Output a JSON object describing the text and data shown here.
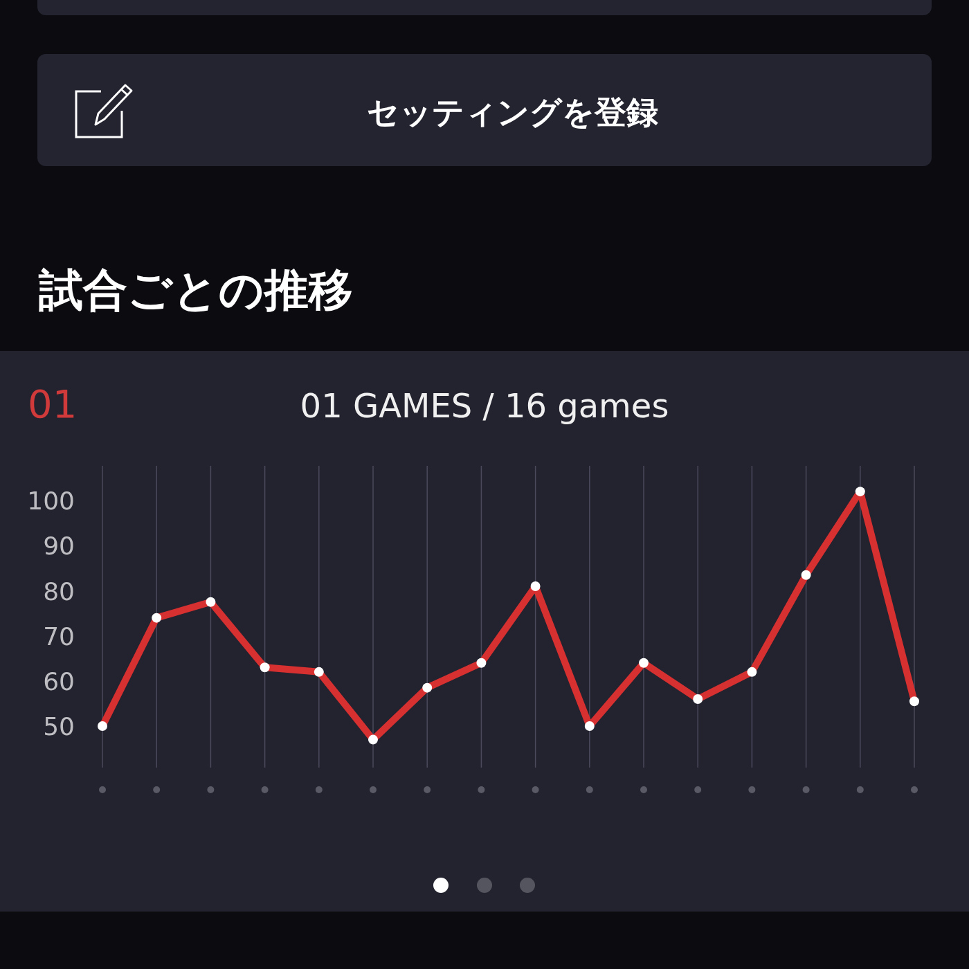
{
  "chart_data": {
    "type": "line",
    "title": "試合ごとの推移",
    "subtitle": "01 GAMES / 16 games",
    "annotations": [
      "セッティングを登録",
      "01"
    ],
    "categories": [
      null,
      null,
      null,
      null,
      null,
      null,
      null,
      null,
      null,
      null,
      null,
      null,
      null,
      null,
      null,
      null
    ],
    "series": [
      {
        "color": "#d63031",
        "values": [
          50,
          74,
          77.5,
          63,
          62,
          47,
          58.5,
          64,
          81,
          50,
          64,
          56,
          62,
          83.5,
          102,
          55.5
        ]
      }
    ],
    "ylim": [
      40.8,
      107.7
    ],
    "yticks": [
      50,
      60,
      70,
      80,
      90,
      100
    ],
    "grid": "x",
    "marker": "circle",
    "line_style": "solid"
  }
}
